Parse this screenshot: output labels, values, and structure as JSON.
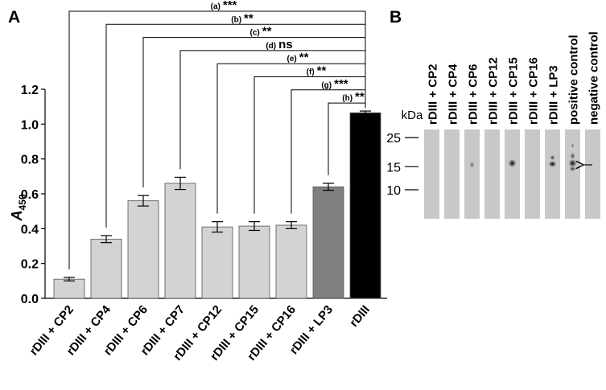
{
  "chart_data": {
    "type": "bar",
    "panel_label": "A",
    "y_label": "A",
    "y_label_subscript": "450",
    "categories": [
      "rDIII + CP2",
      "rDIII + CP4",
      "rDIII + CP6",
      "rDIII + CP7",
      "rDIII + CP12",
      "rDIII + CP15",
      "rDIII + CP16",
      "rDIII + LP3",
      "rDIII"
    ],
    "values": [
      0.11,
      0.34,
      0.56,
      0.66,
      0.41,
      0.415,
      0.42,
      0.64,
      1.065
    ],
    "errors": [
      0.01,
      0.02,
      0.03,
      0.035,
      0.03,
      0.025,
      0.02,
      0.02,
      0.01
    ],
    "colors": [
      "#d3d3d3",
      "#d3d3d3",
      "#d3d3d3",
      "#d3d3d3",
      "#d3d3d3",
      "#d3d3d3",
      "#d3d3d3",
      "#7f7f7f",
      "#000000"
    ],
    "ylim": [
      0,
      1.2
    ],
    "yticks": [
      {
        "value": 0,
        "label": "0.0"
      },
      0.2,
      0.4,
      0.6,
      0.8,
      {
        "value": 1,
        "label": "1.0"
      },
      1.2
    ],
    "comparisons": [
      {
        "label": "(a)",
        "significance": "***"
      },
      {
        "label": "(b)",
        "significance": "**"
      },
      {
        "label": "(c)",
        "significance": "**"
      },
      {
        "label": "(d)",
        "significance": "ns"
      },
      {
        "label": "(e)",
        "significance": "**"
      },
      {
        "label": "(f)",
        "significance": "**"
      },
      {
        "label": "(g)",
        "significance": "***"
      },
      {
        "label": "(h)",
        "significance": "**"
      }
    ]
  },
  "blot": {
    "panel_label": "B",
    "units": "kDa",
    "markers": [
      25,
      15,
      10
    ],
    "lanes": [
      "rDIII + CP2",
      "rDIII + CP4",
      "rDIII + CP6",
      "rDIII + CP12",
      "rDIII + CP15",
      "rDIII + CP16",
      "rDIII + LP3",
      "positive control",
      "negative control"
    ]
  }
}
